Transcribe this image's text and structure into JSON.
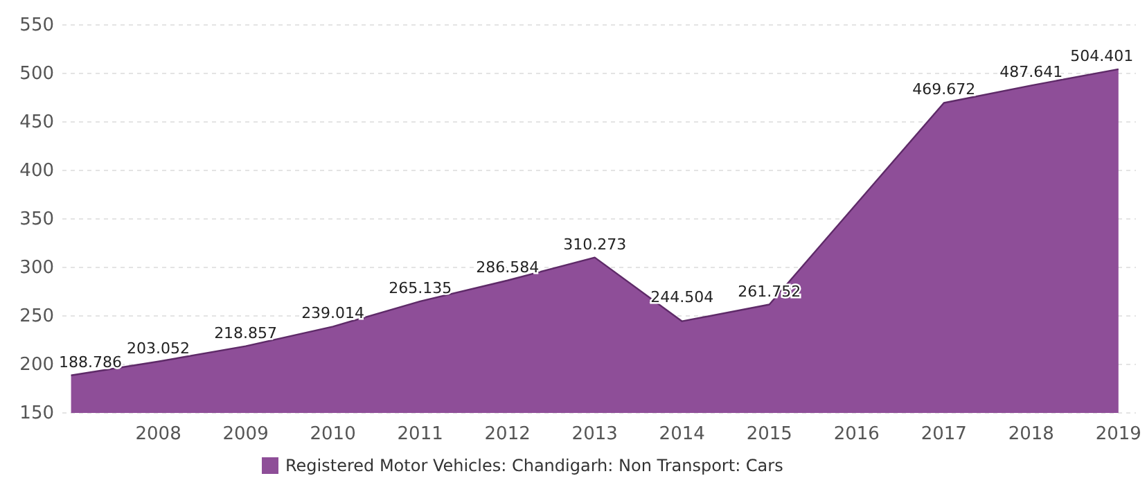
{
  "chart_data": {
    "type": "area",
    "x": [
      2007,
      2008,
      2009,
      2010,
      2011,
      2012,
      2013,
      2014,
      2015,
      2016,
      2017,
      2018,
      2019
    ],
    "series": [
      {
        "name": "Registered Motor Vehicles: Chandigarh: Non Transport: Cars",
        "color": "#8e4e98",
        "values": [
          188.786,
          203.052,
          218.857,
          239.014,
          265.135,
          286.584,
          310.273,
          244.504,
          261.752,
          null,
          469.672,
          487.641,
          504.401
        ]
      }
    ],
    "data_labels": true,
    "xlim": [
      2006.9,
      2019.2
    ],
    "xticks": [
      2008,
      2009,
      2010,
      2011,
      2012,
      2013,
      2014,
      2015,
      2016,
      2017,
      2018,
      2019
    ],
    "ylim": [
      150,
      550
    ],
    "yticks": [
      150,
      200,
      250,
      300,
      350,
      400,
      450,
      500,
      550
    ],
    "grid": "y",
    "legend": "bottom"
  }
}
